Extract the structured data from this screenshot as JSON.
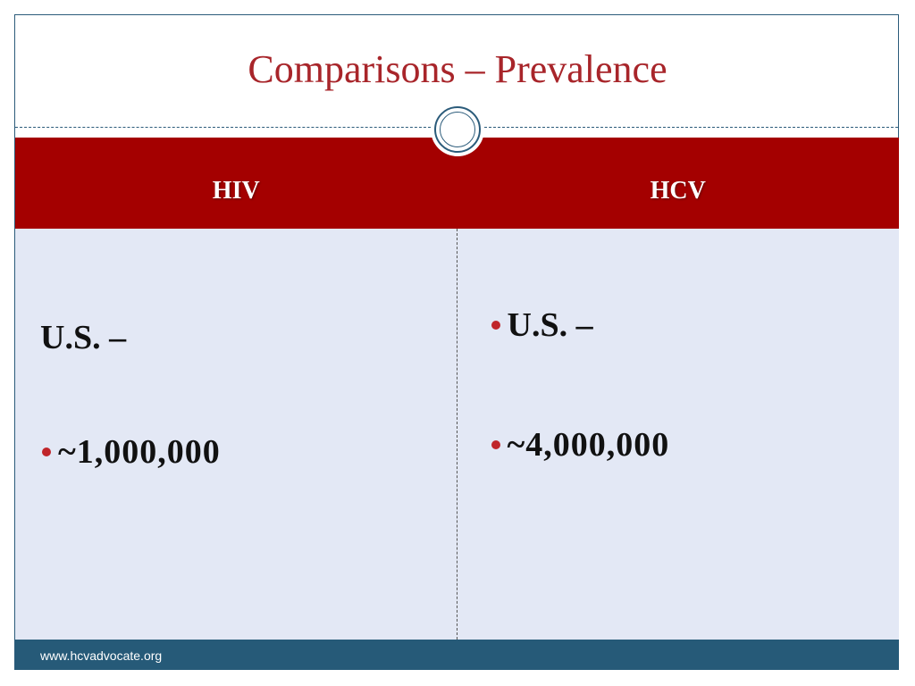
{
  "slide": {
    "title": "Comparisons – Prevalence",
    "table": {
      "columns": [
        "HIV",
        "HCV"
      ],
      "hiv": {
        "line1": "U.S. –",
        "line2": "~1,000,000"
      },
      "hcv": {
        "line1": "U.S. –",
        "line2": "~4,000,000"
      }
    },
    "footer": "www.hcvadvocate.org"
  },
  "colors": {
    "title": "#a8252a",
    "header_band": "#a40000",
    "table_body": "#e3e8f5",
    "footer_band": "#265a78",
    "bullet": "#c0252a"
  }
}
